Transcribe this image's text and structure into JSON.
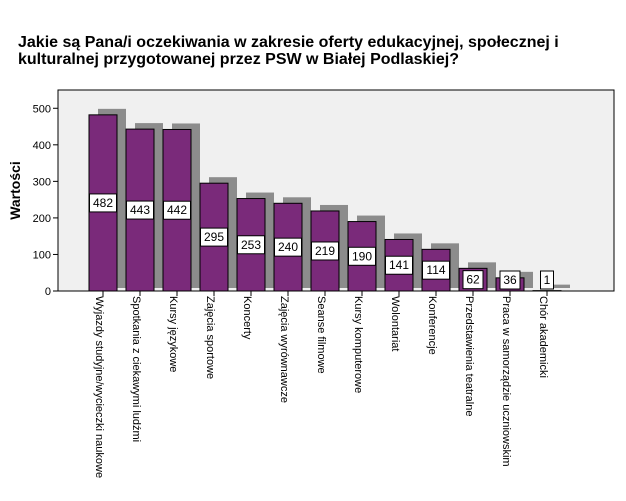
{
  "chart_data": {
    "type": "bar",
    "title": "Jakie są Pana/i oczekiwania w zakresie oferty edukacyjnej, społecznej i kulturalnej przygotowanej przez PSW w Białej Podlaskiej?",
    "ylabel": "Wartości",
    "xlabel": "",
    "ylim": [
      0,
      550
    ],
    "yticks": [
      0,
      100,
      200,
      300,
      400,
      500
    ],
    "categories": [
      "Wyjazdy studyjne/wycieczki naukowe",
      "Spotkania z ciekawymi ludźmi",
      "Kursy językowe",
      "Zajęcia sportowe",
      "Koncerty",
      "Zajęcia wyrównawcze",
      "Seanse filmowe",
      "Kursy komputerowe",
      "Wolontariat",
      "Konferencje",
      "Przedstawienia teatralne",
      "Praca w samorządzie uczniowskim",
      "Chór akademicki"
    ],
    "values": [
      482,
      443,
      442,
      295,
      253,
      240,
      219,
      190,
      141,
      114,
      62,
      36,
      1
    ],
    "data_labels": [
      "482",
      "443",
      "442",
      "295",
      "253",
      "240",
      "219",
      "190",
      "141",
      "114",
      "62",
      "36",
      "1"
    ],
    "bar_color": "#7a2a7a",
    "shadow_color": "#8c8c8c",
    "plot_background": "#f0f0f0",
    "grid": false,
    "legend": "none"
  }
}
